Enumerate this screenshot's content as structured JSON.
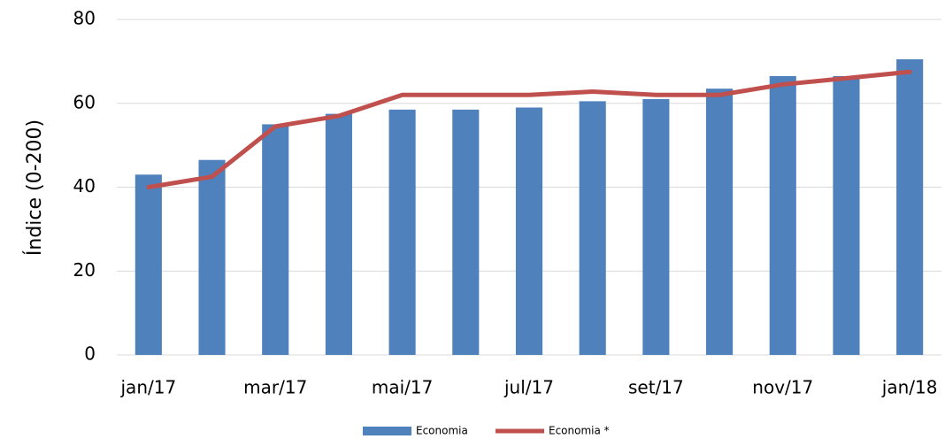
{
  "chart_data": {
    "type": "bar",
    "y_label": "Índice (0-200)",
    "categories": [
      "jan/17",
      null,
      "mar/17",
      null,
      "mai/17",
      null,
      "jul/17",
      null,
      "set/17",
      null,
      "nov/17",
      null,
      "jan/18"
    ],
    "series": [
      {
        "name": "Economia",
        "type": "bar",
        "color": "#4f81bd",
        "values": [
          43,
          46.5,
          55,
          57.5,
          58.5,
          58.5,
          59,
          60.5,
          61,
          63.5,
          66.5,
          66.5,
          70.5
        ]
      },
      {
        "name": "Economia *",
        "type": "line",
        "color": "#c0504d",
        "values": [
          40,
          42.5,
          54.5,
          57,
          62,
          62,
          62,
          62.8,
          62,
          62,
          64.5,
          66,
          67.5
        ]
      }
    ],
    "ylim": [
      0,
      80
    ],
    "yticks": [
      0,
      20,
      40,
      60,
      80
    ],
    "grid": true,
    "legend": "bottom"
  }
}
